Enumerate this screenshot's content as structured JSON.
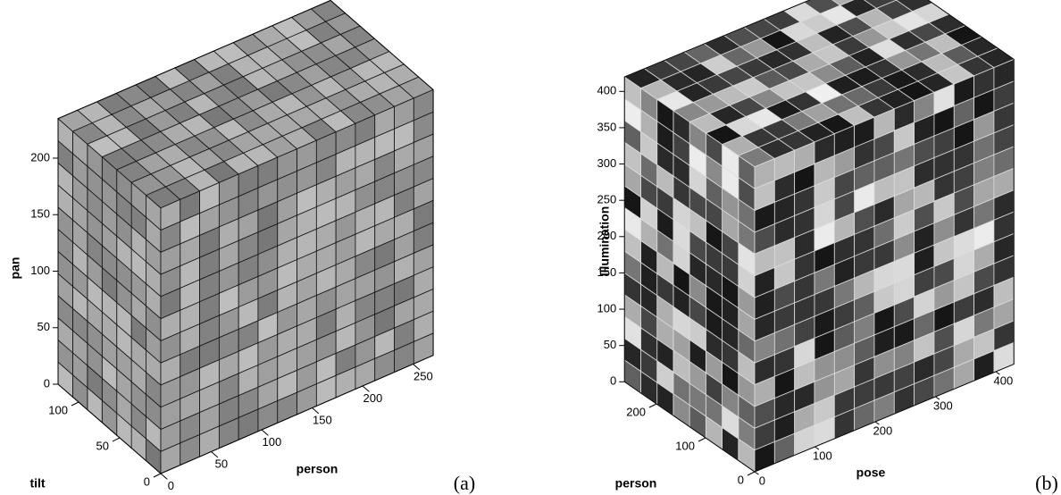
{
  "chart_data": [
    {
      "type": "cube",
      "panel_label": "(a)",
      "xlabel": "person",
      "ylabel": "tilt",
      "zlabel": "pan",
      "xlim": [
        0,
        270
      ],
      "xticks": [
        0,
        50,
        100,
        150,
        200,
        250
      ],
      "ylim": [
        0,
        125
      ],
      "yticks": [
        0,
        50,
        100
      ],
      "zlim": [
        0,
        235
      ],
      "zticks": [
        0,
        50,
        100,
        150,
        200
      ]
    },
    {
      "type": "cube",
      "panel_label": "(b)",
      "xlabel": "pose",
      "ylabel": "person",
      "zlabel": "Illumination",
      "xlim": [
        0,
        430
      ],
      "xticks": [
        0,
        100,
        200,
        300,
        400
      ],
      "ylim": [
        0,
        265
      ],
      "yticks": [
        0,
        100,
        200
      ],
      "zlim": [
        0,
        420
      ],
      "zticks": [
        0,
        50,
        100,
        150,
        200,
        250,
        300,
        350,
        400
      ]
    }
  ]
}
